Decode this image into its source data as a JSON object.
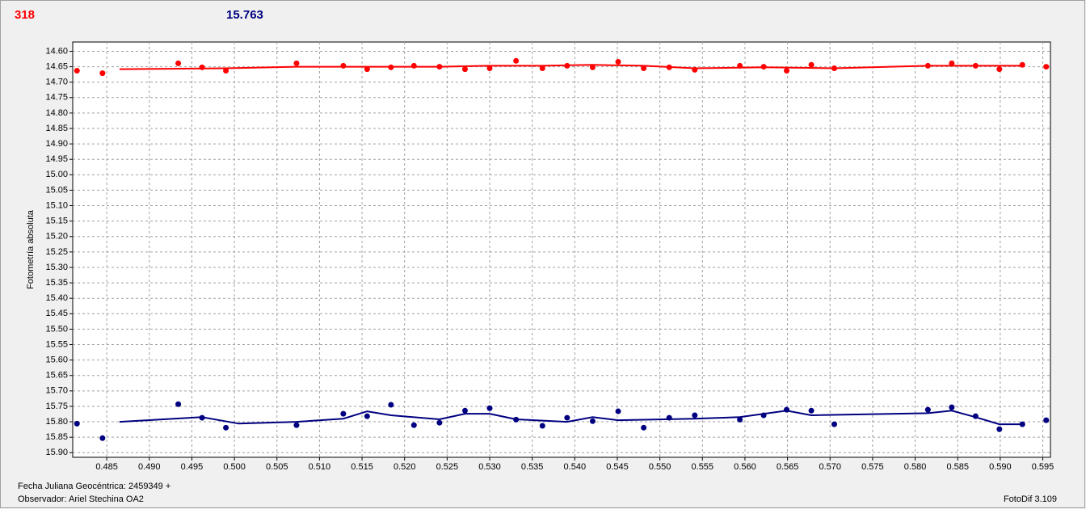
{
  "chart_data": {
    "type": "scatter",
    "header_left": "318",
    "header_right": "15.763",
    "y_label": "Fotometría absoluta",
    "footer_date": "Fecha Juliana Geocéntrica: 2459349 +",
    "footer_observer": "Observador: Ariel Stechina OA2",
    "footer_version": "FotoDif 3.109",
    "xlim": [
      0.481,
      0.5959
    ],
    "ylim": [
      14.57,
      15.915
    ],
    "y_inverted": true,
    "grid": true,
    "xticks": [
      0.485,
      {
        "value": 0.49,
        "label": "0.490"
      },
      0.495,
      {
        "value": 0.5,
        "label": "0.500"
      },
      0.505,
      {
        "value": 0.51,
        "label": "0.510"
      },
      0.515,
      {
        "value": 0.52,
        "label": "0.520"
      },
      0.525,
      {
        "value": 0.53,
        "label": "0.530"
      },
      0.535,
      {
        "value": 0.54,
        "label": "0.540"
      },
      0.545,
      {
        "value": 0.55,
        "label": "0.550"
      },
      0.555,
      {
        "value": 0.56,
        "label": "0.560"
      },
      0.565,
      {
        "value": 0.57,
        "label": "0.570"
      },
      0.575,
      {
        "value": 0.58,
        "label": "0.580"
      },
      0.585,
      {
        "value": 0.59,
        "label": "0.590"
      },
      0.595
    ],
    "yticks": [
      {
        "value": 14.6,
        "label": "14.60"
      },
      14.65,
      {
        "value": 14.7,
        "label": "14.70"
      },
      14.75,
      {
        "value": 14.8,
        "label": "14.80"
      },
      14.85,
      {
        "value": 14.9,
        "label": "14.90"
      },
      14.95,
      {
        "value": 15,
        "label": "15.00"
      },
      15.05,
      {
        "value": 15.1,
        "label": "15.10"
      },
      15.15,
      {
        "value": 15.2,
        "label": "15.20"
      },
      15.25,
      {
        "value": 15.3,
        "label": "15.30"
      },
      15.35,
      {
        "value": 15.4,
        "label": "15.40"
      },
      15.45,
      {
        "value": 15.5,
        "label": "15.50"
      },
      15.55,
      {
        "value": 15.6,
        "label": "15.60"
      },
      15.65,
      {
        "value": 15.7,
        "label": "15.70"
      },
      15.75,
      {
        "value": 15.8,
        "label": "15.80"
      },
      15.85,
      {
        "value": 15.9,
        "label": "15.90"
      }
    ],
    "series": [
      {
        "style": "markers",
        "color": "#ff0000",
        "x": [
          0.4815,
          0.4845,
          0.4934,
          0.4962,
          0.499,
          0.5073,
          0.5128,
          0.5156,
          0.5184,
          0.5211,
          0.5241,
          0.5271,
          0.53,
          0.5331,
          0.5362,
          0.5391,
          0.5421,
          0.5451,
          0.5481,
          0.5511,
          0.5541,
          0.5594,
          0.5622,
          0.5649,
          0.5678,
          0.5705,
          0.5815,
          0.5843,
          0.5871,
          0.5899,
          0.5926,
          0.5954
        ],
        "values": [
          14.663,
          14.671,
          14.639,
          14.652,
          14.663,
          14.639,
          14.647,
          14.658,
          14.652,
          14.647,
          14.65,
          14.658,
          14.655,
          14.631,
          14.655,
          14.647,
          14.652,
          14.634,
          14.655,
          14.652,
          14.66,
          14.647,
          14.65,
          14.663,
          14.644,
          14.655,
          14.647,
          14.639,
          14.647,
          14.658,
          14.644,
          14.65
        ]
      },
      {
        "style": "line",
        "color": "#ff0000",
        "x": [
          0.4865,
          0.499,
          0.5073,
          0.5156,
          0.5241,
          0.53,
          0.5362,
          0.5421,
          0.5481,
          0.5541,
          0.5622,
          0.5705,
          0.5815,
          0.5926
        ],
        "values": [
          14.658,
          14.655,
          14.65,
          14.65,
          14.65,
          14.647,
          14.647,
          14.644,
          14.647,
          14.655,
          14.652,
          14.655,
          14.647,
          14.647
        ]
      },
      {
        "style": "markers",
        "color": "#000080",
        "x": [
          0.4815,
          0.4845,
          0.4934,
          0.4962,
          0.499,
          0.5073,
          0.5128,
          0.5156,
          0.5184,
          0.5211,
          0.5241,
          0.5271,
          0.53,
          0.5331,
          0.5362,
          0.5391,
          0.5421,
          0.5451,
          0.5481,
          0.5511,
          0.5541,
          0.5594,
          0.5622,
          0.5649,
          0.5678,
          0.5705,
          0.5815,
          0.5843,
          0.5871,
          0.5899,
          0.5926,
          0.5954
        ],
        "values": [
          15.806,
          15.853,
          15.743,
          15.787,
          15.819,
          15.811,
          15.774,
          15.782,
          15.745,
          15.811,
          15.803,
          15.764,
          15.756,
          15.793,
          15.813,
          15.787,
          15.798,
          15.766,
          15.819,
          15.787,
          15.779,
          15.793,
          15.779,
          15.761,
          15.764,
          15.808,
          15.761,
          15.753,
          15.782,
          15.824,
          15.808,
          15.795
        ]
      },
      {
        "style": "line",
        "color": "#000080",
        "x": [
          0.4865,
          0.4962,
          0.5005,
          0.5073,
          0.5128,
          0.5156,
          0.5184,
          0.5241,
          0.5271,
          0.53,
          0.5331,
          0.5391,
          0.5421,
          0.5451,
          0.5541,
          0.5594,
          0.5649,
          0.5678,
          0.5815,
          0.5843,
          0.5871,
          0.5899,
          0.5926
        ],
        "values": [
          15.8,
          15.785,
          15.806,
          15.8,
          15.79,
          15.766,
          15.779,
          15.792,
          15.774,
          15.774,
          15.792,
          15.8,
          15.785,
          15.795,
          15.79,
          15.785,
          15.764,
          15.779,
          15.772,
          15.764,
          15.785,
          15.808,
          15.808
        ]
      }
    ]
  }
}
